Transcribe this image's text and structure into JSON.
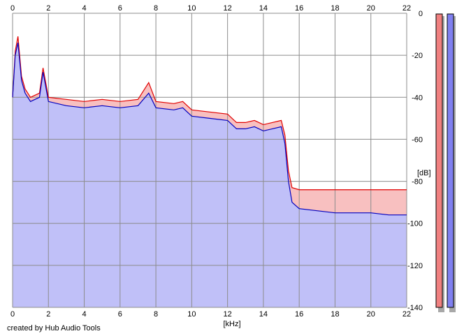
{
  "chart_data": {
    "type": "area",
    "xlabel": "[kHz]",
    "ylabel": "[dB]",
    "xlim": [
      0,
      22
    ],
    "ylim": [
      -140,
      0
    ],
    "x_ticks": [
      0,
      2,
      4,
      6,
      8,
      10,
      12,
      14,
      16,
      18,
      20,
      22
    ],
    "y_ticks": [
      0,
      -20,
      -40,
      -60,
      -80,
      -100,
      -120,
      -140
    ],
    "grid": true,
    "series": [
      {
        "color": "#e00000",
        "fill": "#f8c0c0",
        "points": [
          [
            0,
            -40
          ],
          [
            0.15,
            -18
          ],
          [
            0.3,
            -11
          ],
          [
            0.5,
            -30
          ],
          [
            0.7,
            -36
          ],
          [
            1.0,
            -40
          ],
          [
            1.5,
            -38
          ],
          [
            1.7,
            -26
          ],
          [
            2.0,
            -40
          ],
          [
            3.0,
            -41
          ],
          [
            4.0,
            -42
          ],
          [
            5.0,
            -41
          ],
          [
            6.0,
            -42
          ],
          [
            7.0,
            -41
          ],
          [
            7.6,
            -33
          ],
          [
            8.0,
            -42
          ],
          [
            9.0,
            -43
          ],
          [
            9.5,
            -42
          ],
          [
            10.0,
            -46
          ],
          [
            11.0,
            -47
          ],
          [
            12.0,
            -48
          ],
          [
            12.5,
            -52
          ],
          [
            13.0,
            -52
          ],
          [
            13.5,
            -51
          ],
          [
            14.0,
            -53
          ],
          [
            14.5,
            -52
          ],
          [
            15.0,
            -51
          ],
          [
            15.2,
            -58
          ],
          [
            15.4,
            -75
          ],
          [
            15.6,
            -83
          ],
          [
            16.0,
            -84
          ],
          [
            17.0,
            -84
          ],
          [
            18.0,
            -84
          ],
          [
            19.0,
            -84
          ],
          [
            20.0,
            -84
          ],
          [
            21.0,
            -84
          ],
          [
            22.0,
            -84
          ]
        ]
      },
      {
        "color": "#0000c0",
        "fill": "#c0c0f8",
        "points": [
          [
            0,
            -40
          ],
          [
            0.15,
            -20
          ],
          [
            0.3,
            -14
          ],
          [
            0.5,
            -32
          ],
          [
            0.7,
            -38
          ],
          [
            1.0,
            -42
          ],
          [
            1.5,
            -40
          ],
          [
            1.7,
            -28
          ],
          [
            2.0,
            -42
          ],
          [
            3.0,
            -44
          ],
          [
            4.0,
            -45
          ],
          [
            5.0,
            -44
          ],
          [
            6.0,
            -45
          ],
          [
            7.0,
            -44
          ],
          [
            7.6,
            -38
          ],
          [
            8.0,
            -45
          ],
          [
            9.0,
            -46
          ],
          [
            9.5,
            -45
          ],
          [
            10.0,
            -49
          ],
          [
            11.0,
            -50
          ],
          [
            12.0,
            -51
          ],
          [
            12.5,
            -55
          ],
          [
            13.0,
            -55
          ],
          [
            13.5,
            -54
          ],
          [
            14.0,
            -56
          ],
          [
            14.5,
            -55
          ],
          [
            15.0,
            -54
          ],
          [
            15.2,
            -62
          ],
          [
            15.4,
            -80
          ],
          [
            15.6,
            -90
          ],
          [
            16.0,
            -93
          ],
          [
            17.0,
            -94
          ],
          [
            18.0,
            -95
          ],
          [
            19.0,
            -95
          ],
          [
            20.0,
            -95
          ],
          [
            21.0,
            -96
          ],
          [
            22.0,
            -96
          ]
        ]
      }
    ]
  },
  "meters": [
    {
      "color": "#f08080"
    },
    {
      "color": "#8080f0"
    }
  ],
  "credit": "created by Hub Audio Tools"
}
